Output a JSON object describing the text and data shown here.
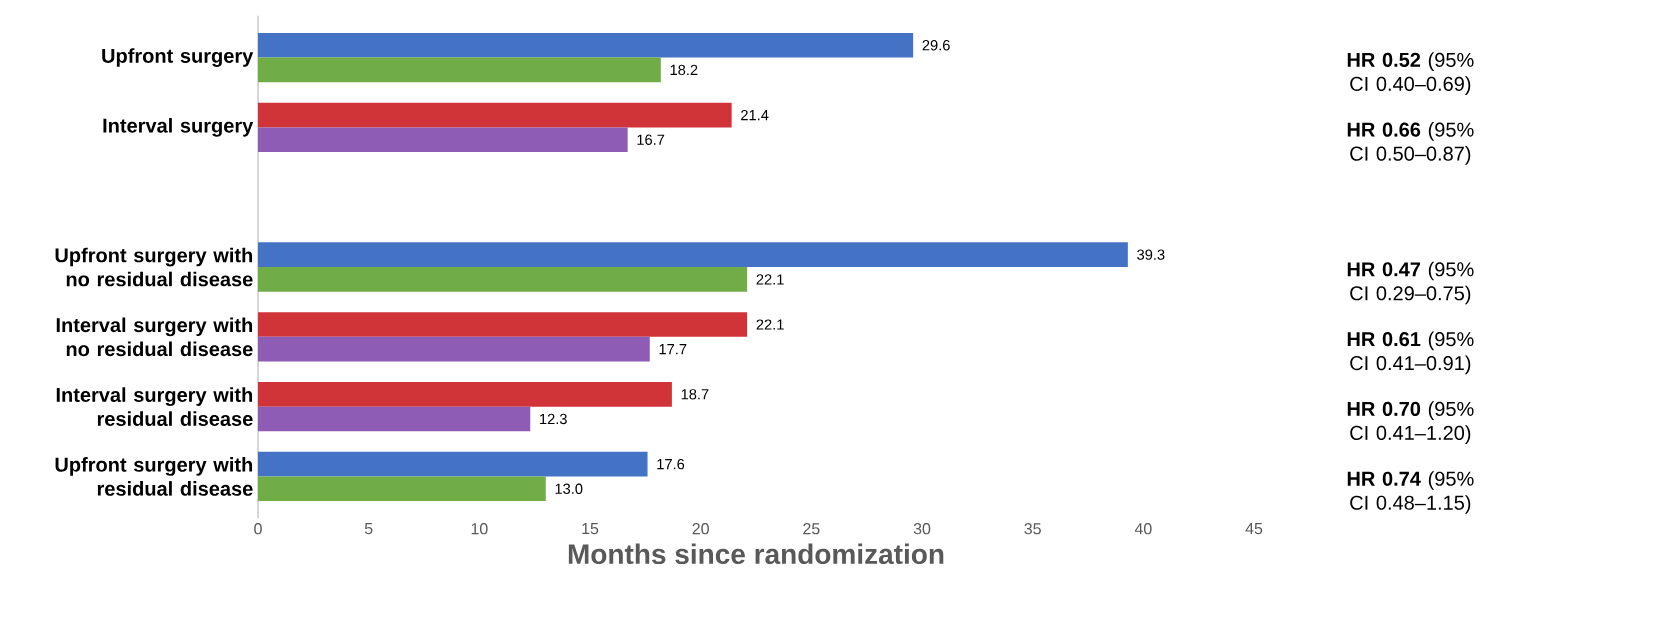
{
  "chart_data": {
    "type": "bar",
    "orientation": "horizontal",
    "xlabel": "Months since randomization",
    "categories": [
      "Upfront surgery",
      "Interval surgery",
      null,
      "Upfront surgery with no residual disease",
      "Interval surgery with no residual disease",
      "Interval surgery with residual disease",
      "Upfront surgery with residual disease"
    ],
    "series": [
      {
        "color": "#4472c4",
        "values": [
          29.6,
          null,
          null,
          39.3,
          null,
          null,
          17.6
        ],
        "value_labels": [
          "29.6",
          null,
          null,
          "39.3",
          null,
          null,
          "17.6"
        ]
      },
      {
        "color": "#70ad47",
        "values": [
          18.2,
          null,
          null,
          22.1,
          null,
          null,
          13.0
        ],
        "value_labels": [
          "18.2",
          null,
          null,
          "22.1",
          null,
          null,
          "13.0"
        ]
      },
      {
        "color": "#d13438",
        "values": [
          null,
          21.4,
          null,
          null,
          22.1,
          18.7,
          null
        ],
        "value_labels": [
          null,
          "21.4",
          null,
          null,
          "22.1",
          "18.7",
          null
        ]
      },
      {
        "color": "#8e5bb5",
        "values": [
          null,
          16.7,
          null,
          null,
          17.7,
          12.3,
          null
        ],
        "value_labels": [
          null,
          "16.7",
          null,
          null,
          "17.7",
          "12.3",
          null
        ]
      }
    ],
    "xlim": [
      0,
      45
    ],
    "xticks": [
      0,
      5,
      10,
      15,
      20,
      25,
      30,
      35,
      40,
      45
    ],
    "annotations": [
      "**HR 0.52** (95% CI 0.40–0.69)",
      "**HR 0.66** (95% CI 0.50–0.87)",
      "**HR 0.47** (95% CI 0.29–0.75)",
      "**HR 0.61** (95% CI 0.41–0.91)",
      "**HR 0.70** (95% CI 0.41–1.20)",
      "**HR 0.74** (95% CI 0.48–1.15)"
    ]
  }
}
